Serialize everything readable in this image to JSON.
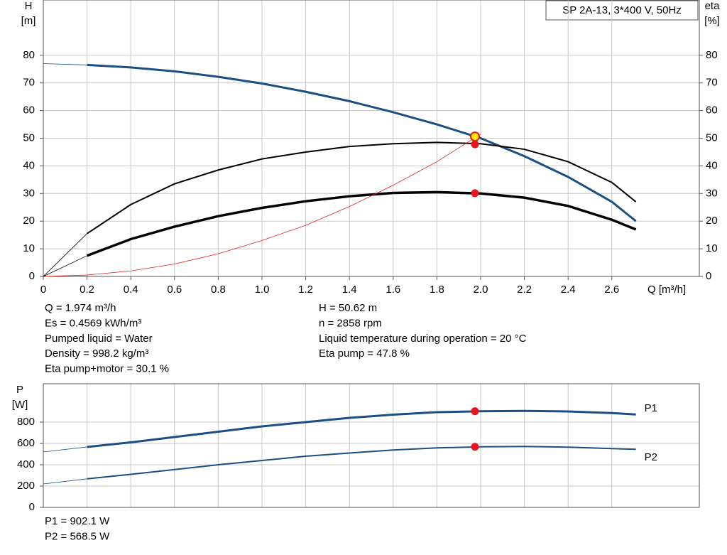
{
  "chart_data": [
    {
      "type": "line",
      "legend_title": "SP 2A-13, 3*400 V, 50Hz",
      "y_label": [
        "H",
        "[m]"
      ],
      "y2_label": [
        "eta",
        "[%]"
      ],
      "x_label": "Q [m³/h]",
      "xlim": [
        0,
        3.0
      ],
      "xticks": [
        0,
        0.2,
        0.4,
        0.6,
        0.8,
        {
          "value": 1.0,
          "label": "1.0"
        },
        1.2,
        1.4,
        1.6,
        1.8,
        {
          "value": 2.0,
          "label": "2.0"
        },
        2.2,
        2.4,
        2.6
      ],
      "ylim": [
        0,
        100
      ],
      "yticks": [
        0,
        10,
        20,
        30,
        40,
        50,
        60,
        70,
        80
      ],
      "y2lim": [
        0,
        100
      ],
      "y2ticks": [
        0,
        10,
        20,
        30,
        40,
        50,
        60,
        70,
        80
      ],
      "grid": true,
      "x": [
        0,
        0.2,
        0.4,
        0.6,
        0.8,
        1.0,
        1.2,
        1.4,
        1.6,
        1.8,
        2.0,
        2.2,
        2.4,
        2.6,
        2.71
      ],
      "series": [
        {
          "color": "#1a4f85",
          "width": 3,
          "values": [
            77,
            76.5,
            75.6,
            74.2,
            72.2,
            69.8,
            66.8,
            63.4,
            59.4,
            55,
            50,
            43.5,
            36,
            27,
            20
          ]
        },
        {
          "color": "#000000",
          "width": 2,
          "axis": "y2",
          "values": [
            0,
            15.5,
            26,
            33.5,
            38.5,
            42.5,
            45,
            47,
            48,
            48.5,
            48,
            46,
            41.5,
            34,
            27
          ]
        },
        {
          "color": "#000000",
          "width": 3.5,
          "axis": "y2",
          "values": [
            0,
            7.5,
            13.5,
            18,
            21.8,
            24.8,
            27.2,
            29,
            30.2,
            30.5,
            30,
            28.5,
            25.5,
            20.5,
            17
          ]
        },
        {
          "color": "#e02020",
          "width": 0.8,
          "values": [
            0,
            0.5,
            2,
            4.5,
            8.2,
            13,
            18.5,
            25.3,
            33,
            41.5,
            51.5,
            null,
            null,
            null,
            null
          ]
        }
      ],
      "duty_point": {
        "x": 1.974,
        "values": [
          50.62,
          47.8,
          30.1
        ]
      },
      "info": {
        "left": [
          "Q = 1.974 m³/h",
          "Es = 0.4569 kWh/m³",
          "Pumped liquid = Water",
          "Density = 998.2 kg/m³",
          "Eta pump+motor = 30.1 %"
        ],
        "right": [
          "H = 50.62 m",
          "n = 2858 rpm",
          "Liquid temperature during operation = 20 °C",
          "Eta pump = 47.8 %"
        ]
      }
    },
    {
      "type": "line",
      "y_label": [
        "P",
        "[W]"
      ],
      "xlim": [
        0,
        3.0
      ],
      "ylim": [
        0,
        1160
      ],
      "yticks": [
        0,
        200,
        400,
        600,
        800
      ],
      "grid": true,
      "x": [
        0,
        0.2,
        0.4,
        0.6,
        0.8,
        1.0,
        1.2,
        1.4,
        1.6,
        1.8,
        2.0,
        2.2,
        2.4,
        2.6,
        2.71
      ],
      "series": [
        {
          "name": "P1",
          "color": "#1a4f85",
          "width": 3,
          "values": [
            520,
            567,
            610,
            660,
            710,
            760,
            800,
            840,
            870,
            893,
            902,
            905,
            900,
            885,
            872
          ]
        },
        {
          "name": "P2",
          "color": "#1a4f85",
          "width": 2,
          "values": [
            220,
            268,
            310,
            355,
            400,
            440,
            480,
            510,
            538,
            558,
            568,
            572,
            565,
            552,
            545
          ]
        }
      ],
      "duty_point": {
        "x": 1.974,
        "values": [
          902.1,
          568.5
        ]
      },
      "info": [
        "P1 = 902.1 W",
        "P2 = 568.5 W"
      ]
    }
  ]
}
